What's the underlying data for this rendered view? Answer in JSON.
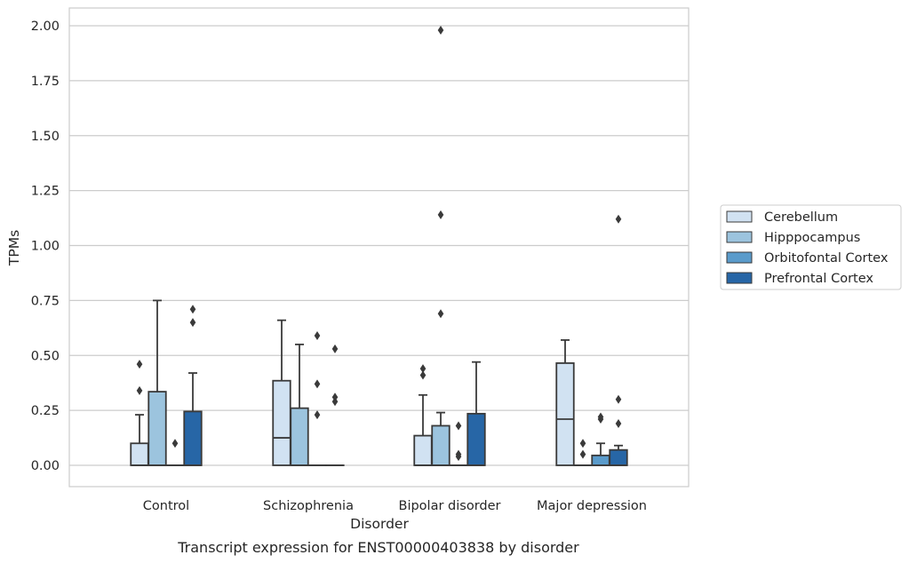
{
  "chart_data": {
    "type": "box",
    "title": "",
    "caption": "Transcript expression for ENST00000403838 by disorder",
    "xlabel": "Disorder",
    "ylabel": "TPMs",
    "ylim": [
      -0.1,
      2.08
    ],
    "yticks": [
      "0.00",
      "0.25",
      "0.50",
      "0.75",
      "1.00",
      "1.25",
      "1.50",
      "1.75",
      "2.00"
    ],
    "grid": "horizontal",
    "legend_position": "right",
    "categories": [
      "Control",
      "Schizophrenia",
      "Bipolar disorder",
      "Major depression"
    ],
    "series": [
      {
        "name": "Cerebellum",
        "color": "#d1e2f2",
        "boxes": [
          {
            "q1": 0.0,
            "median": 0.0,
            "q3": 0.1,
            "whisker_low": 0.0,
            "whisker_high": 0.23,
            "outliers": [
              0.34,
              0.46
            ]
          },
          {
            "q1": 0.0,
            "median": 0.125,
            "q3": 0.385,
            "whisker_low": 0.0,
            "whisker_high": 0.66,
            "outliers": []
          },
          {
            "q1": 0.0,
            "median": 0.0,
            "q3": 0.135,
            "whisker_low": 0.0,
            "whisker_high": 0.32,
            "outliers": [
              0.41,
              0.44
            ]
          },
          {
            "q1": 0.0,
            "median": 0.21,
            "q3": 0.465,
            "whisker_low": 0.0,
            "whisker_high": 0.57,
            "outliers": []
          }
        ]
      },
      {
        "name": "Hipppocampus",
        "color": "#9cc4de",
        "boxes": [
          {
            "q1": 0.0,
            "median": 0.0,
            "q3": 0.335,
            "whisker_low": 0.0,
            "whisker_high": 0.75,
            "outliers": []
          },
          {
            "q1": 0.0,
            "median": 0.0,
            "q3": 0.26,
            "whisker_low": 0.0,
            "whisker_high": 0.55,
            "outliers": []
          },
          {
            "q1": 0.0,
            "median": 0.0,
            "q3": 0.18,
            "whisker_low": 0.0,
            "whisker_high": 0.24,
            "outliers": [
              0.69,
              1.14,
              1.98
            ]
          },
          {
            "q1": 0.0,
            "median": 0.0,
            "q3": 0.0,
            "whisker_low": 0.0,
            "whisker_high": 0.0,
            "outliers": [
              0.05,
              0.1
            ]
          }
        ]
      },
      {
        "name": "Orbitofontal Cortex",
        "color": "#5a9bcb",
        "boxes": [
          {
            "q1": 0.0,
            "median": 0.0,
            "q3": 0.0,
            "whisker_low": 0.0,
            "whisker_high": 0.0,
            "outliers": [
              0.1
            ]
          },
          {
            "q1": 0.0,
            "median": 0.0,
            "q3": 0.0,
            "whisker_low": 0.0,
            "whisker_high": 0.0,
            "outliers": [
              0.23,
              0.37,
              0.59
            ]
          },
          {
            "q1": 0.0,
            "median": 0.0,
            "q3": 0.0,
            "whisker_low": 0.0,
            "whisker_high": 0.0,
            "outliers": [
              0.04,
              0.05,
              0.18
            ]
          },
          {
            "q1": 0.0,
            "median": 0.0,
            "q3": 0.045,
            "whisker_low": 0.0,
            "whisker_high": 0.1,
            "outliers": [
              0.21,
              0.22
            ]
          }
        ]
      },
      {
        "name": "Prefrontal Cortex",
        "color": "#2766a6",
        "boxes": [
          {
            "q1": 0.0,
            "median": 0.0,
            "q3": 0.245,
            "whisker_low": 0.0,
            "whisker_high": 0.42,
            "outliers": [
              0.65,
              0.71
            ]
          },
          {
            "q1": 0.0,
            "median": 0.0,
            "q3": 0.0,
            "whisker_low": 0.0,
            "whisker_high": 0.0,
            "outliers": [
              0.29,
              0.31,
              0.53
            ]
          },
          {
            "q1": 0.0,
            "median": 0.0,
            "q3": 0.235,
            "whisker_low": 0.0,
            "whisker_high": 0.47,
            "outliers": []
          },
          {
            "q1": 0.0,
            "median": 0.0,
            "q3": 0.07,
            "whisker_low": 0.0,
            "whisker_high": 0.09,
            "outliers": [
              0.19,
              0.3,
              1.12
            ]
          }
        ]
      }
    ],
    "colors": {
      "grid": "#cccccc",
      "frame": "#cccccc",
      "box_edge": "#3a3a3a",
      "text": "#262626"
    }
  }
}
